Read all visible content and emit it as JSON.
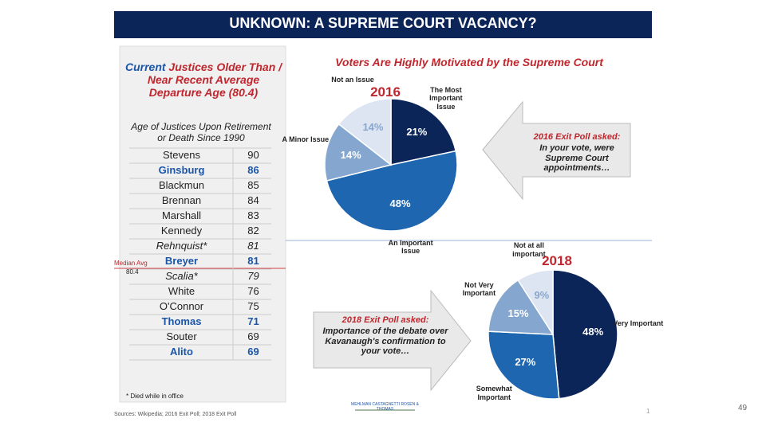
{
  "title": "UNKNOWN:  A SUPREME COURT VACANCY?",
  "table": {
    "heading_current": "Current",
    "heading_rest": "Justices Older Than / Near Recent Average Departure Age (80.4)",
    "caption": "Age of Justices Upon Retirement or Death Since 1990",
    "rows": [
      {
        "name": "Stevens",
        "age": "90",
        "color": "#222222",
        "italic": false
      },
      {
        "name": "Ginsburg",
        "age": "86",
        "color": "#1a55a8",
        "italic": false
      },
      {
        "name": "Blackmun",
        "age": "85",
        "color": "#222222",
        "italic": false
      },
      {
        "name": "Brennan",
        "age": "84",
        "color": "#222222",
        "italic": false
      },
      {
        "name": "Marshall",
        "age": "83",
        "color": "#222222",
        "italic": false
      },
      {
        "name": "Kennedy",
        "age": "82",
        "color": "#222222",
        "italic": false
      },
      {
        "name": "Rehnquist*",
        "age": "81",
        "color": "#222222",
        "italic": true
      },
      {
        "name": "Breyer",
        "age": "81",
        "color": "#1a55a8",
        "italic": false
      },
      {
        "name": "Scalia*",
        "age": "79",
        "color": "#222222",
        "italic": true
      },
      {
        "name": "White",
        "age": "76",
        "color": "#222222",
        "italic": false
      },
      {
        "name": "O'Connor",
        "age": "75",
        "color": "#222222",
        "italic": false
      },
      {
        "name": "Thomas",
        "age": "71",
        "color": "#1a55a8",
        "italic": false
      },
      {
        "name": "Souter",
        "age": "69",
        "color": "#222222",
        "italic": false
      },
      {
        "name": "Alito",
        "age": "69",
        "color": "#1a55a8",
        "italic": false
      }
    ],
    "median_label": "Median Avg",
    "median_value": "80.4",
    "footnote": "* Died while in office"
  },
  "charts_title": "Voters Are Highly Motivated by the Supreme Court",
  "chart_data": [
    {
      "type": "pie",
      "title": "2016",
      "categories": [
        "The Most Important Issue",
        "An Important Issue",
        "A Minor Issue",
        "Not an Issue"
      ],
      "values": [
        21,
        48,
        14,
        14
      ],
      "value_labels": [
        "21%",
        "48%",
        "14%",
        "14%"
      ],
      "colors": [
        "#0b2559",
        "#1f66b0",
        "#84a6cf",
        "#dce5f1"
      ],
      "annotation_heading": "2016 Exit Poll asked:",
      "annotation": "In your vote, were Supreme Court appointments…"
    },
    {
      "type": "pie",
      "title": "2018",
      "categories": [
        "Very Important",
        "Somewhat Important",
        "Not Very Important",
        "Not at all important"
      ],
      "values": [
        48,
        27,
        15,
        9
      ],
      "value_labels": [
        "48%",
        "27%",
        "15%",
        "9%"
      ],
      "colors": [
        "#0b2559",
        "#1f66b0",
        "#84a6cf",
        "#dce5f1"
      ],
      "annotation_heading": "2018 Exit Poll asked:",
      "annotation": "Importance of the debate over Kavanaugh's confirmation to your vote…"
    }
  ],
  "source": "Sources: Wikipedia; 2016 Exit Poll; 2018 Exit Poll",
  "logo": "MEHLMAN CASTAGNETTI ROSEN & THOMAS",
  "slide_mark": "1",
  "page_number": "49"
}
